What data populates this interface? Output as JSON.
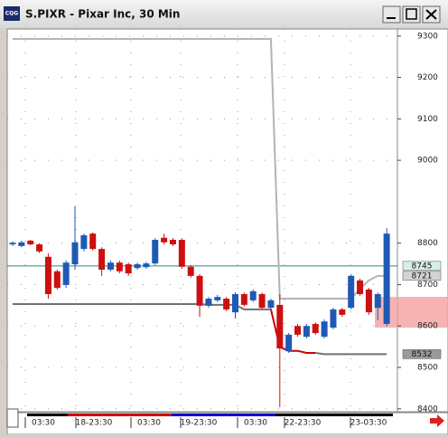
{
  "window": {
    "icon": "CQG",
    "title": "S.PIXR - Pixar Inc, 30 Min"
  },
  "chart_data": {
    "type": "candlestick",
    "open": [
      8797,
      8793,
      8806,
      8797,
      8767,
      8732,
      8699,
      8749,
      8786,
      8823,
      8786,
      8736,
      8753,
      8749,
      8740,
      8742,
      8751,
      8813,
      8808,
      8808,
      8743,
      8721,
      8649,
      8662,
      8666,
      8633,
      8677,
      8662,
      8677,
      8644,
      8651,
      8539,
      8600,
      8574,
      8605,
      8574,
      8596,
      8640,
      8644,
      8710,
      8688,
      8644,
      8605
    ],
    "high": [
      8804,
      8806,
      8808,
      8800,
      8775,
      8736,
      8758,
      8889,
      8823,
      8826,
      8790,
      8758,
      8758,
      8753,
      8753,
      8755,
      8812,
      8823,
      8812,
      8812,
      8747,
      8725,
      8670,
      8675,
      8670,
      8681,
      8681,
      8688,
      8681,
      8666,
      8677,
      8583,
      8605,
      8605,
      8609,
      8616,
      8644,
      8644,
      8725,
      8714,
      8692,
      8681,
      8836
    ],
    "low": [
      8793,
      8790,
      8795,
      8776,
      8666,
      8688,
      8692,
      8736,
      8780,
      8782,
      8721,
      8732,
      8727,
      8721,
      8736,
      8738,
      8747,
      8797,
      8793,
      8738,
      8717,
      8622,
      8644,
      8658,
      8636,
      8618,
      8647,
      8658,
      8640,
      8640,
      8404,
      8535,
      8574,
      8570,
      8579,
      8570,
      8592,
      8622,
      8640,
      8673,
      8627,
      8614,
      8600
    ],
    "close": [
      8801,
      8802,
      8797,
      8780,
      8677,
      8692,
      8753,
      8802,
      8819,
      8786,
      8736,
      8753,
      8732,
      8727,
      8749,
      8751,
      8808,
      8802,
      8797,
      8743,
      8721,
      8649,
      8666,
      8670,
      8640,
      8677,
      8651,
      8684,
      8644,
      8662,
      8546,
      8579,
      8579,
      8600,
      8583,
      8611,
      8640,
      8627,
      8721,
      8677,
      8633,
      8677,
      8823
    ],
    "up_color": "#1e5ab4",
    "down_color": "#cc1010",
    "ylim": [
      8393,
      9317
    ],
    "yticks": [
      9300,
      9200,
      9100,
      9000,
      8800,
      8700,
      8600,
      8500,
      8400
    ],
    "grid": true,
    "x_labels": [
      "03:30",
      "18-23:30",
      "03:30",
      "19-23:30",
      "03:30",
      "22-23:30",
      "23-03:30"
    ],
    "lines": [
      {
        "color": "#b4b4b4",
        "values": [
          9293,
          9293,
          9293,
          9293,
          9293,
          9293,
          9293,
          9293,
          9293,
          9293,
          9293,
          9293,
          9293,
          9293,
          9293,
          9293,
          9293,
          9293,
          9293,
          9293,
          9293,
          9293,
          9293,
          9293,
          9293,
          9293,
          9293,
          9293,
          9293,
          9293,
          8666,
          8666,
          8666,
          8666,
          8666,
          8666,
          8666,
          8666,
          8666,
          8690,
          8710,
          8721,
          8721
        ]
      },
      {
        "color": "#707070",
        "values": [
          8653,
          8653,
          8653,
          8653,
          8653,
          8653,
          8653,
          8653,
          8653,
          8653,
          8653,
          8653,
          8653,
          8653,
          8653,
          8653,
          8653,
          8653,
          8653,
          8653,
          8653,
          8653,
          8651,
          8651,
          8651,
          8651,
          8640,
          8640,
          8640,
          8640,
          null,
          null,
          null,
          null,
          8535,
          8532,
          8532,
          8532,
          8532,
          8532,
          8532,
          8532,
          8532
        ]
      },
      {
        "color": "#cc0000",
        "values": [
          null,
          null,
          null,
          null,
          null,
          null,
          null,
          null,
          null,
          null,
          null,
          null,
          null,
          null,
          null,
          null,
          null,
          null,
          null,
          null,
          null,
          null,
          null,
          null,
          null,
          null,
          null,
          null,
          null,
          8640,
          8549,
          8540,
          8540,
          8535,
          8535,
          null,
          null,
          null,
          null,
          null,
          null,
          null,
          null
        ]
      }
    ],
    "reference_line": {
      "value": 8745,
      "color": "#2a8a80"
    },
    "price_labels": [
      {
        "value": 8745,
        "color": "#d8eeea"
      },
      {
        "value": 8721,
        "color": "#d4d4d4"
      },
      {
        "value": 8532,
        "color": "#9a9a9a"
      }
    ]
  }
}
